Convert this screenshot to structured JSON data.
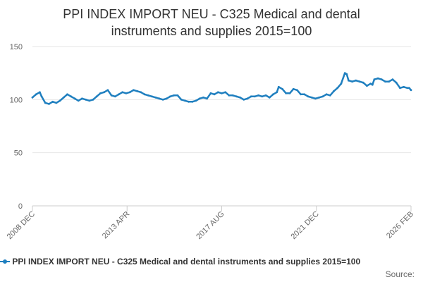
{
  "chart_data": {
    "type": "line",
    "title": "PPI INDEX IMPORT NEU - C325 Medical and dental instruments and supplies 2015=100",
    "title_lines": [
      "PPI INDEX IMPORT NEU - C325 Medical and dental",
      "instruments and supplies 2015=100"
    ],
    "xlabel": "",
    "ylabel": "",
    "ylim": [
      0,
      150
    ],
    "yticks": [
      0,
      50,
      100,
      150
    ],
    "xlim": [
      "2008-12",
      "2026-02"
    ],
    "xticks": [
      "2008 DEC",
      "2013 APR",
      "2017 AUG",
      "2021 DEC",
      "2026 FEB"
    ],
    "grid": true,
    "legend_position": "bottom",
    "series": [
      {
        "name": "PPI INDEX IMPORT NEU - C325 Medical and dental instruments and supplies 2015=100",
        "color": "#1f7fbf",
        "points": [
          [
            "2008-12",
            102
          ],
          [
            "2009-02",
            105
          ],
          [
            "2009-04",
            107
          ],
          [
            "2009-05",
            103
          ],
          [
            "2009-07",
            97
          ],
          [
            "2009-09",
            96
          ],
          [
            "2009-11",
            98
          ],
          [
            "2010-01",
            97
          ],
          [
            "2010-03",
            99
          ],
          [
            "2010-05",
            102
          ],
          [
            "2010-07",
            105
          ],
          [
            "2010-09",
            103
          ],
          [
            "2010-11",
            101
          ],
          [
            "2011-01",
            99
          ],
          [
            "2011-03",
            101
          ],
          [
            "2011-05",
            100
          ],
          [
            "2011-07",
            99
          ],
          [
            "2011-09",
            100
          ],
          [
            "2011-11",
            103
          ],
          [
            "2012-01",
            106
          ],
          [
            "2012-03",
            107
          ],
          [
            "2012-05",
            109
          ],
          [
            "2012-07",
            104
          ],
          [
            "2012-09",
            103
          ],
          [
            "2012-11",
            105
          ],
          [
            "2013-01",
            107
          ],
          [
            "2013-03",
            106
          ],
          [
            "2013-05",
            107
          ],
          [
            "2013-07",
            109
          ],
          [
            "2013-09",
            108
          ],
          [
            "2013-11",
            107
          ],
          [
            "2014-01",
            105
          ],
          [
            "2014-03",
            104
          ],
          [
            "2014-05",
            103
          ],
          [
            "2014-07",
            102
          ],
          [
            "2014-09",
            101
          ],
          [
            "2014-11",
            100
          ],
          [
            "2015-01",
            101
          ],
          [
            "2015-03",
            103
          ],
          [
            "2015-05",
            104
          ],
          [
            "2015-07",
            104
          ],
          [
            "2015-09",
            100
          ],
          [
            "2015-11",
            99
          ],
          [
            "2016-01",
            98
          ],
          [
            "2016-03",
            98
          ],
          [
            "2016-05",
            99
          ],
          [
            "2016-07",
            101
          ],
          [
            "2016-09",
            102
          ],
          [
            "2016-11",
            101
          ],
          [
            "2017-01",
            106
          ],
          [
            "2017-03",
            105
          ],
          [
            "2017-05",
            107
          ],
          [
            "2017-07",
            106
          ],
          [
            "2017-09",
            107
          ],
          [
            "2017-11",
            104
          ],
          [
            "2018-01",
            104
          ],
          [
            "2018-03",
            103
          ],
          [
            "2018-05",
            102
          ],
          [
            "2018-07",
            100
          ],
          [
            "2018-09",
            101
          ],
          [
            "2018-11",
            103
          ],
          [
            "2019-01",
            103
          ],
          [
            "2019-03",
            104
          ],
          [
            "2019-05",
            103
          ],
          [
            "2019-07",
            104
          ],
          [
            "2019-09",
            102
          ],
          [
            "2019-11",
            105
          ],
          [
            "2020-01",
            107
          ],
          [
            "2020-02",
            112
          ],
          [
            "2020-04",
            110
          ],
          [
            "2020-06",
            106
          ],
          [
            "2020-08",
            106
          ],
          [
            "2020-10",
            110
          ],
          [
            "2020-12",
            109
          ],
          [
            "2021-02",
            105
          ],
          [
            "2021-04",
            105
          ],
          [
            "2021-06",
            103
          ],
          [
            "2021-08",
            102
          ],
          [
            "2021-10",
            101
          ],
          [
            "2021-12",
            102
          ],
          [
            "2022-02",
            103
          ],
          [
            "2022-04",
            105
          ],
          [
            "2022-06",
            104
          ],
          [
            "2022-08",
            108
          ],
          [
            "2022-10",
            111
          ],
          [
            "2022-12",
            115
          ],
          [
            "2023-02",
            125
          ],
          [
            "2023-03",
            124
          ],
          [
            "2023-04",
            118
          ],
          [
            "2023-06",
            117
          ],
          [
            "2023-08",
            118
          ],
          [
            "2023-10",
            117
          ],
          [
            "2023-12",
            116
          ],
          [
            "2024-02",
            113
          ],
          [
            "2024-04",
            115
          ],
          [
            "2024-05",
            114
          ],
          [
            "2024-06",
            119
          ],
          [
            "2024-08",
            120
          ],
          [
            "2024-10",
            119
          ],
          [
            "2024-12",
            117
          ],
          [
            "2025-02",
            117
          ],
          [
            "2025-04",
            119
          ],
          [
            "2025-06",
            116
          ],
          [
            "2025-08",
            111
          ],
          [
            "2025-10",
            112
          ],
          [
            "2025-12",
            111
          ],
          [
            "2026-01",
            111
          ],
          [
            "2026-02",
            109
          ]
        ]
      }
    ]
  },
  "source_label": "Source:"
}
